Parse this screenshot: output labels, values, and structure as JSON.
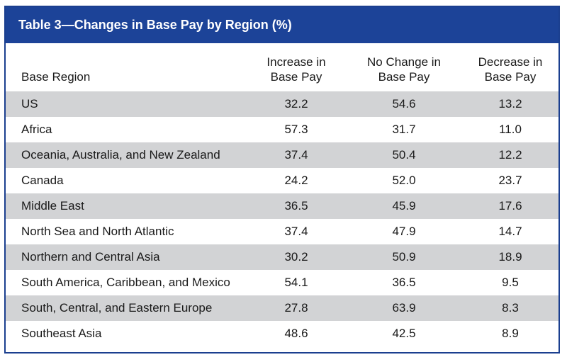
{
  "chart_data": {
    "type": "table",
    "title": "Table 3—Changes in Base Pay by Region (%)",
    "columns": [
      "Base Region",
      "Increase in Base Pay",
      "No Change in Base Pay",
      "Decrease in Base Pay"
    ],
    "header_lines": [
      [
        "Base Region"
      ],
      [
        "Increase in",
        "Base Pay"
      ],
      [
        "No Change in",
        "Base Pay"
      ],
      [
        "Decrease in",
        "Base Pay"
      ]
    ],
    "rows": [
      [
        "US",
        "32.2",
        "54.6",
        "13.2"
      ],
      [
        "Africa",
        "57.3",
        "31.7",
        "11.0"
      ],
      [
        "Oceania, Australia, and New Zealand",
        "37.4",
        "50.4",
        "12.2"
      ],
      [
        "Canada",
        "24.2",
        "52.0",
        "23.7"
      ],
      [
        "Middle East",
        "36.5",
        "45.9",
        "17.6"
      ],
      [
        "North Sea and North Atlantic",
        "37.4",
        "47.9",
        "14.7"
      ],
      [
        "Northern and Central Asia",
        "30.2",
        "50.9",
        "18.9"
      ],
      [
        "South America, Caribbean, and Mexico",
        "54.1",
        "36.5",
        "9.5"
      ],
      [
        "South, Central, and Eastern Europe",
        "27.8",
        "63.9",
        "8.3"
      ],
      [
        "Southeast Asia",
        "48.6",
        "42.5",
        "8.9"
      ]
    ]
  },
  "colors": {
    "title_bg": "#1c4398",
    "border": "#1b3f8f",
    "row_shade": "#d2d3d5",
    "text": "#1a1a1a"
  }
}
